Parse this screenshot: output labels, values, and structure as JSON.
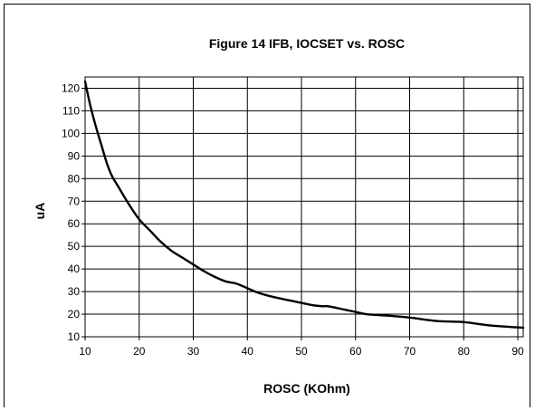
{
  "chart_data": {
    "type": "line",
    "title": "Figure 14 IFB, IOCSET vs. ROSC",
    "xlabel": "ROSC (KOhm)",
    "ylabel": "uA",
    "xlim": [
      10,
      91
    ],
    "ylim": [
      10,
      125
    ],
    "x_ticks": [
      10,
      20,
      30,
      40,
      50,
      60,
      70,
      80,
      90
    ],
    "y_ticks": [
      10,
      20,
      30,
      40,
      50,
      60,
      70,
      80,
      90,
      100,
      110,
      120
    ],
    "grid": true,
    "legend": "none",
    "line_color": "#000000",
    "series": [
      {
        "x": [
          10,
          11,
          12,
          13,
          14,
          15,
          16,
          18,
          20,
          22,
          24,
          26,
          28,
          30,
          32,
          34,
          36,
          38,
          40,
          42,
          45,
          48,
          50,
          52,
          54,
          55,
          58,
          60,
          62,
          65,
          70,
          75,
          80,
          85,
          91
        ],
        "values": [
          123,
          112,
          103,
          95,
          87,
          81,
          77,
          69,
          62,
          57,
          52,
          48,
          45,
          42,
          39,
          36.5,
          34.5,
          33.5,
          31.5,
          29.5,
          27.5,
          26,
          25,
          24,
          23.5,
          23.5,
          22,
          21,
          20,
          19.5,
          18.5,
          17,
          16.5,
          15,
          14
        ]
      }
    ]
  }
}
